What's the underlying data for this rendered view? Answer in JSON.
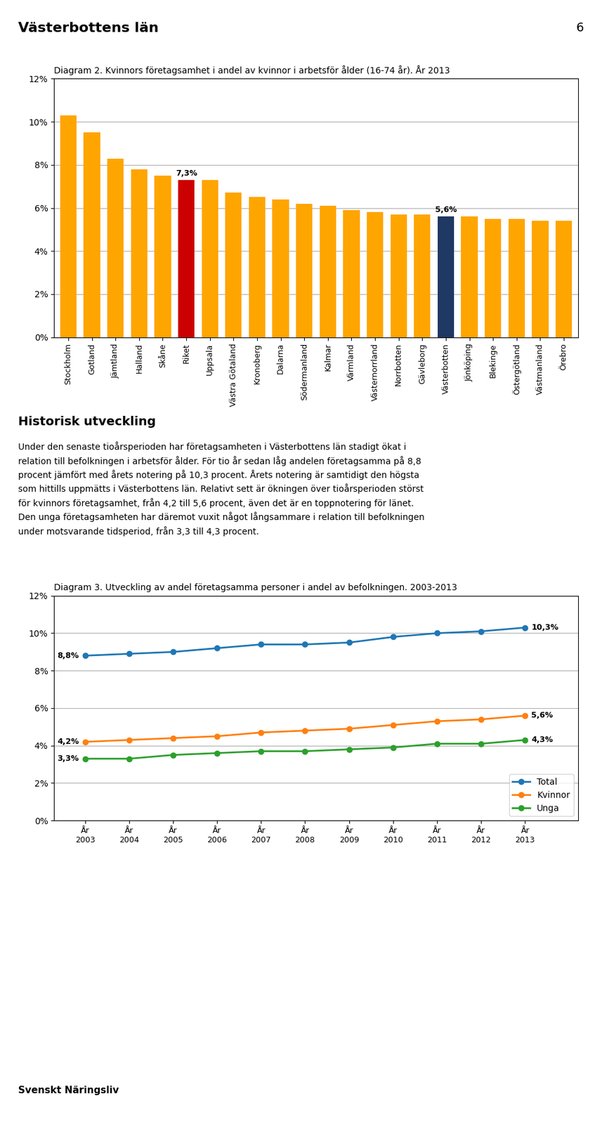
{
  "title": "Västerbottens län",
  "annotations": [
    "6",
    "Historisk utveckling",
    "Under den senaste tioårsperioden har företagsamheten i Västerbottens län stadigt ökat i\nrelation till befolkningen i arbetsför ålder. För tio år sedan låg andelen företagsamma på 8,8\nprocent jämfört med årets notering på 10,3 procent. Årets notering är samtidigt den högsta\nsom hittills uppmätts i Västerbottens län. Relativt sett är ökningen över tioårsperioden störst\nför kvinnors företagsamhet, från 4,2 till 5,6 procent, även det är en toppnotering för länet.\nDen unga företagsamheten har däremot vuxit något långsammare i relation till befolkningen\nunder motsvarande tidsperiod, från 3,3 till 4,3 procent.",
    "Svenskt Näringsliv"
  ],
  "chart_data": [
    {
      "type": "bar",
      "title": "Diagram 2. Kvinnors företagsamhet i andel av kvinnor i arbetsför ålder (16-74 år). År 2013",
      "categories": [
        "Stockholm",
        "Gotland",
        "Jämtland",
        "Halland",
        "Skåne",
        "Riket",
        "Uppsala",
        "Västra Götaland",
        "Kronoberg",
        "Dalarna",
        "Södermanland",
        "Kalmar",
        "Värmland",
        "Västernorrland",
        "Norrbotten",
        "Gävleborg",
        "Västerbotten",
        "Jönköping",
        "Blekinge",
        "Östergötland",
        "Västmanland",
        "Örebro"
      ],
      "values": [
        10.3,
        9.5,
        8.3,
        7.8,
        7.5,
        7.3,
        7.3,
        6.7,
        6.5,
        6.4,
        6.2,
        6.1,
        5.9,
        5.8,
        5.7,
        5.7,
        5.6,
        5.6,
        5.5,
        5.5,
        5.4,
        5.4
      ],
      "value_labels": [
        null,
        null,
        null,
        null,
        null,
        "7,3%",
        null,
        null,
        null,
        null,
        null,
        null,
        null,
        null,
        null,
        null,
        "5,6%",
        null,
        null,
        null,
        null,
        null
      ],
      "colors": [
        "#FFA500",
        "#FFA500",
        "#FFA500",
        "#FFA500",
        "#FFA500",
        "#CC0000",
        "#FFA500",
        "#FFA500",
        "#FFA500",
        "#FFA500",
        "#FFA500",
        "#FFA500",
        "#FFA500",
        "#FFA500",
        "#FFA500",
        "#FFA500",
        "#1F3864",
        "#FFA500",
        "#FFA500",
        "#FFA500",
        "#FFA500",
        "#FFA500"
      ],
      "ylim": [
        0,
        12
      ],
      "yticks": [
        {
          "value": 0,
          "label": "0%"
        },
        {
          "value": 2,
          "label": "2%"
        },
        {
          "value": 4,
          "label": "4%"
        },
        {
          "value": 6,
          "label": "6%"
        },
        {
          "value": 8,
          "label": "8%"
        },
        {
          "value": 10,
          "label": "10%"
        },
        {
          "value": 12,
          "label": "12%"
        }
      ],
      "grid": true
    },
    {
      "type": "line",
      "title": "Diagram 3. Utveckling av andel företagsamma personer i andel av befolkningen. 2003-2013",
      "x": [
        2003,
        2004,
        2005,
        2006,
        2007,
        2008,
        2009,
        2010,
        2011,
        2012,
        2013
      ],
      "xlim": [
        2002.3,
        2014.2
      ],
      "xticks": [
        {
          "value": 2003,
          "label": "År\n2003"
        },
        {
          "value": 2004,
          "label": "År\n2004"
        },
        {
          "value": 2005,
          "label": "År\n2005"
        },
        {
          "value": 2006,
          "label": "År\n2006"
        },
        {
          "value": 2007,
          "label": "År\n2007"
        },
        {
          "value": 2008,
          "label": "År\n2008"
        },
        {
          "value": 2009,
          "label": "År\n2009"
        },
        {
          "value": 2010,
          "label": "År\n2010"
        },
        {
          "value": 2011,
          "label": "År\n2011"
        },
        {
          "value": 2012,
          "label": "År\n2012"
        },
        {
          "value": 2013,
          "label": "År\n2013"
        }
      ],
      "series": [
        {
          "name": "Total",
          "marker": "o",
          "values": [
            8.8,
            8.9,
            9.0,
            9.2,
            9.4,
            9.4,
            9.5,
            9.8,
            10.0,
            10.1,
            10.3
          ],
          "value_labels": [
            "8,8%",
            null,
            null,
            null,
            null,
            null,
            null,
            null,
            null,
            null,
            "10,3%"
          ]
        },
        {
          "name": "Kvinnor",
          "marker": "o",
          "values": [
            4.2,
            4.3,
            4.4,
            4.5,
            4.7,
            4.8,
            4.9,
            5.1,
            5.3,
            5.4,
            5.6
          ],
          "value_labels": [
            "4,2%",
            null,
            null,
            null,
            null,
            null,
            null,
            null,
            null,
            null,
            "5,6%"
          ]
        },
        {
          "name": "Unga",
          "marker": "o",
          "values": [
            3.3,
            3.3,
            3.5,
            3.6,
            3.7,
            3.7,
            3.8,
            3.9,
            4.1,
            4.1,
            4.3
          ],
          "value_labels": [
            "3,3%",
            null,
            null,
            null,
            null,
            null,
            null,
            null,
            null,
            null,
            "4,3%"
          ]
        }
      ],
      "ylim": [
        0,
        12
      ],
      "yticks": [
        {
          "value": 0,
          "label": "0%"
        },
        {
          "value": 2,
          "label": "2%"
        },
        {
          "value": 4,
          "label": "4%"
        },
        {
          "value": 6,
          "label": "6%"
        },
        {
          "value": 8,
          "label": "8%"
        },
        {
          "value": 10,
          "label": "10%"
        },
        {
          "value": 12,
          "label": "12%"
        }
      ],
      "grid": true,
      "legend": "lower right"
    }
  ]
}
